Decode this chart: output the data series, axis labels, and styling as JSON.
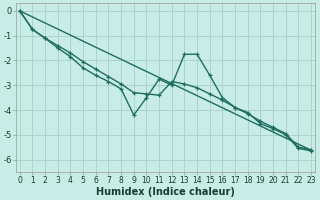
{
  "title": "",
  "xlabel": "Humidex (Indice chaleur)",
  "ylabel": "",
  "bg_color": "#c8ece6",
  "grid_color": "#aad4cc",
  "line_color": "#1e6e62",
  "xlim": [
    -0.3,
    23.3
  ],
  "ylim": [
    -6.5,
    0.3
  ],
  "yticks": [
    0,
    -1,
    -2,
    -3,
    -4,
    -5,
    -6
  ],
  "ytick_labels": [
    "0",
    "-1",
    "-2",
    "-3",
    "-4",
    "-5",
    "-6"
  ],
  "xticks": [
    0,
    1,
    2,
    3,
    4,
    5,
    6,
    7,
    8,
    9,
    10,
    11,
    12,
    13,
    14,
    15,
    16,
    17,
    18,
    19,
    20,
    21,
    22,
    23
  ],
  "series1_x": [
    0,
    1,
    2,
    3,
    4,
    5,
    6,
    7,
    8,
    9,
    10,
    11,
    12,
    13,
    14,
    15,
    16,
    17,
    18,
    19,
    20,
    21,
    22,
    23
  ],
  "series1_y": [
    0.0,
    -0.75,
    -1.1,
    -1.5,
    -1.85,
    -2.3,
    -2.6,
    -2.85,
    -3.15,
    -4.2,
    -3.5,
    -2.75,
    -3.0,
    -1.75,
    -1.75,
    -2.6,
    -3.5,
    -3.9,
    -4.1,
    -4.55,
    -4.75,
    -5.0,
    -5.55,
    -5.65
  ],
  "series2_x": [
    0,
    1,
    2,
    3,
    4,
    5,
    6,
    7,
    8,
    9,
    10,
    11,
    12,
    13,
    14,
    15,
    16,
    17,
    18,
    19,
    20,
    21,
    22,
    23
  ],
  "series2_y": [
    0.0,
    -0.75,
    -1.1,
    -1.4,
    -1.7,
    -2.05,
    -2.35,
    -2.65,
    -2.95,
    -3.3,
    -3.35,
    -3.4,
    -2.85,
    -2.95,
    -3.1,
    -3.35,
    -3.6,
    -3.9,
    -4.15,
    -4.45,
    -4.7,
    -4.95,
    -5.5,
    -5.6
  ],
  "series3_x": [
    0,
    23
  ],
  "series3_y": [
    0.0,
    -5.62
  ],
  "marker_size": 3.5,
  "line_width": 1.0,
  "tick_fontsize": 5.5,
  "xlabel_fontsize": 7.0
}
